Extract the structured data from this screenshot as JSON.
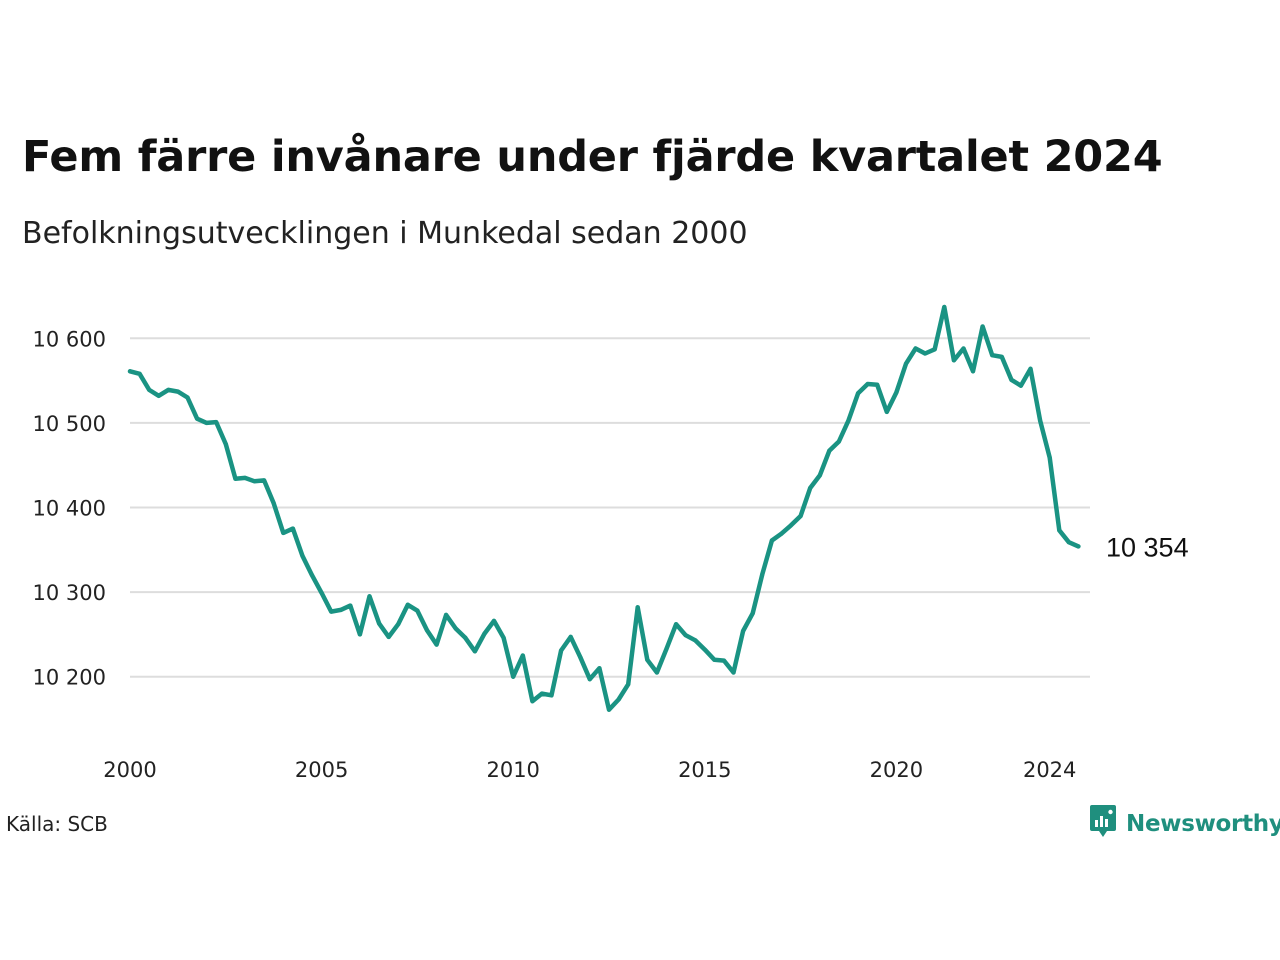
{
  "title": "Fem färre invånare under fjärde kvartalet 2024",
  "subtitle": "Befolkningsutvecklingen i Munkedal sedan 2000",
  "source": "Källa: SCB",
  "brand": {
    "name": "Newsworthy",
    "icon": "newsworthy-logo-icon"
  },
  "colors": {
    "line": "#1a9383",
    "grid": "#dddddd",
    "brand": "#1f8f7e"
  },
  "chart_data": {
    "type": "line",
    "title": "Fem färre invånare under fjärde kvartalet 2024",
    "subtitle": "Befolkningsutvecklingen i Munkedal sedan 2000",
    "xlabel": "",
    "ylabel": "",
    "xlim": [
      2000,
      2025
    ],
    "ylim": [
      10150,
      10650
    ],
    "x_ticks": [
      {
        "value": 2000,
        "label": "2000"
      },
      {
        "value": 2005,
        "label": "2005"
      },
      {
        "value": 2010,
        "label": "2010"
      },
      {
        "value": 2015,
        "label": "2015"
      },
      {
        "value": 2020,
        "label": "2020"
      },
      {
        "value": 2024,
        "label": "2024"
      }
    ],
    "y_ticks": [
      {
        "value": 10200,
        "label": "10 200"
      },
      {
        "value": 10300,
        "label": "10 300"
      },
      {
        "value": 10400,
        "label": "10 400"
      },
      {
        "value": 10500,
        "label": "10 500"
      },
      {
        "value": 10600,
        "label": "10 600"
      }
    ],
    "grid": "horizontal",
    "end_label": "10 354",
    "series": [
      {
        "x": [
          "2000 Q1",
          "2000 Q2",
          "2000 Q3",
          "2000 Q4",
          "2001 Q1",
          "2001 Q2",
          "2001 Q3",
          "2001 Q4",
          "2002 Q1",
          "2002 Q2",
          "2002 Q3",
          "2002 Q4",
          "2003 Q1",
          "2003 Q2",
          "2003 Q3",
          "2003 Q4",
          "2004 Q1",
          "2004 Q2",
          "2004 Q3",
          "2004 Q4",
          "2005 Q1",
          "2005 Q2",
          "2005 Q3",
          "2005 Q4",
          "2006 Q1",
          "2006 Q2",
          "2006 Q3",
          "2006 Q4",
          "2007 Q1",
          "2007 Q2",
          "2007 Q3",
          "2007 Q4",
          "2008 Q1",
          "2008 Q2",
          "2008 Q3",
          "2008 Q4",
          "2009 Q1",
          "2009 Q2",
          "2009 Q3",
          "2009 Q4",
          "2010 Q1",
          "2010 Q2",
          "2010 Q3",
          "2010 Q4",
          "2011 Q1",
          "2011 Q2",
          "2011 Q3",
          "2011 Q4",
          "2012 Q1",
          "2012 Q2",
          "2012 Q3",
          "2012 Q4",
          "2013 Q1",
          "2013 Q2",
          "2013 Q3",
          "2013 Q4",
          "2014 Q1",
          "2014 Q2",
          "2014 Q3",
          "2014 Q4",
          "2015 Q1",
          "2015 Q2",
          "2015 Q3",
          "2015 Q4",
          "2016 Q1",
          "2016 Q2",
          "2016 Q3",
          "2016 Q4",
          "2017 Q1",
          "2017 Q2",
          "2017 Q3",
          "2017 Q4",
          "2018 Q1",
          "2018 Q2",
          "2018 Q3",
          "2018 Q4",
          "2019 Q1",
          "2019 Q2",
          "2019 Q3",
          "2019 Q4",
          "2020 Q1",
          "2020 Q2",
          "2020 Q3",
          "2020 Q4",
          "2021 Q1",
          "2021 Q2",
          "2021 Q3",
          "2021 Q4",
          "2022 Q1",
          "2022 Q2",
          "2022 Q3",
          "2022 Q4",
          "2023 Q1",
          "2023 Q2",
          "2023 Q3",
          "2023 Q4",
          "2024 Q1",
          "2024 Q2",
          "2024 Q3",
          "2024 Q4"
        ],
        "values": [
          10561,
          10558,
          10539,
          10532,
          10539,
          10537,
          10530,
          10505,
          10500,
          10501,
          10475,
          10434,
          10435,
          10431,
          10432,
          10405,
          10370,
          10375,
          10343,
          10320,
          10299,
          10277,
          10279,
          10284,
          10250,
          10295,
          10263,
          10247,
          10262,
          10285,
          10278,
          10255,
          10238,
          10273,
          10257,
          10246,
          10230,
          10251,
          10266,
          10246,
          10200,
          10225,
          10171,
          10180,
          10178,
          10231,
          10247,
          10223,
          10197,
          10210,
          10161,
          10173,
          10191,
          10282,
          10220,
          10205,
          10233,
          10262,
          10249,
          10243,
          10232,
          10220,
          10219,
          10205,
          10254,
          10275,
          10321,
          10361,
          10369,
          10379,
          10390,
          10423,
          10438,
          10467,
          10478,
          10503,
          10535,
          10546,
          10545,
          10513,
          10536,
          10570,
          10588,
          10582,
          10587,
          10637,
          10574,
          10588,
          10561,
          10614,
          10580,
          10578,
          10551,
          10544,
          10564,
          10503,
          10459,
          10373,
          10359,
          10354
        ]
      }
    ]
  }
}
